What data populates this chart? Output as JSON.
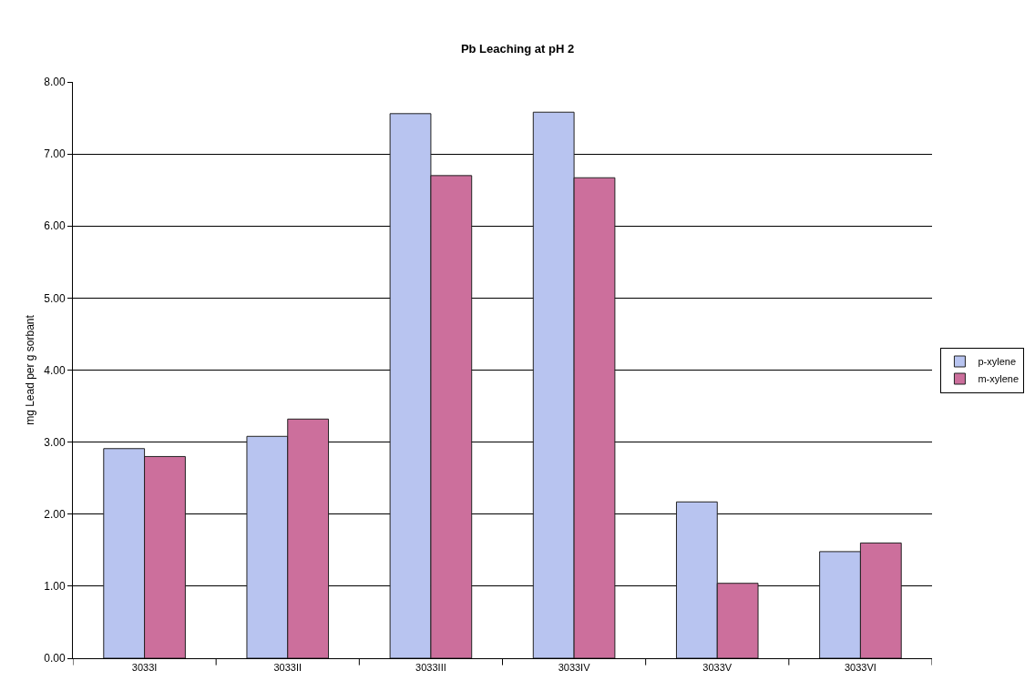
{
  "chart_data": {
    "type": "bar",
    "title": "Pb Leaching at pH 2",
    "ylabel": "mg Lead per g sorbant",
    "categories": [
      "3033I",
      "3033II",
      "3033III",
      "3033IV",
      "3033V",
      "3033VI"
    ],
    "series": [
      {
        "name": "p-xylene",
        "color": "#b8c4f0",
        "values": [
          2.91,
          3.08,
          7.56,
          7.58,
          2.17,
          1.48
        ]
      },
      {
        "name": "m-xylene",
        "color": "#cc6f9c",
        "values": [
          2.8,
          3.32,
          6.7,
          6.67,
          1.04,
          1.6
        ]
      }
    ],
    "ylim": [
      0,
      8
    ],
    "yticks": [
      {
        "value": 0,
        "label": "0.00"
      },
      {
        "value": 1,
        "label": "1.00"
      },
      {
        "value": 2,
        "label": "2.00"
      },
      {
        "value": 3,
        "label": "3.00"
      },
      {
        "value": 4,
        "label": "4.00"
      },
      {
        "value": 5,
        "label": "5.00"
      },
      {
        "value": 6,
        "label": "6.00"
      },
      {
        "value": 7,
        "label": "7.00"
      },
      {
        "value": 8,
        "label": "8.00"
      }
    ],
    "grid": "y",
    "legend": "right"
  }
}
